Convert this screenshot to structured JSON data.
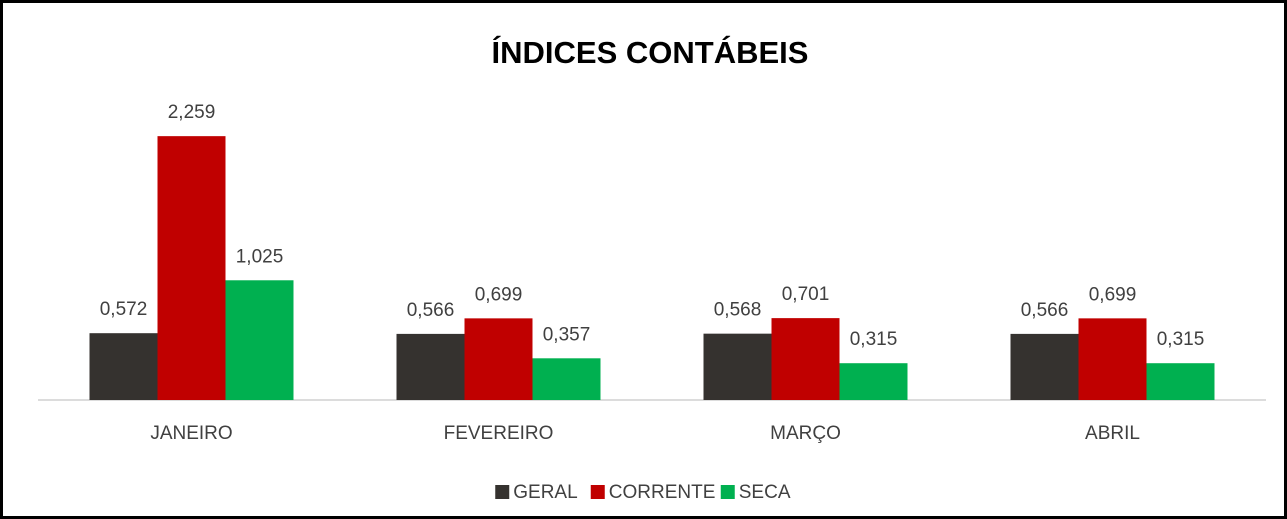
{
  "chart_data": {
    "type": "bar",
    "title": "ÍNDICES CONTÁBEIS",
    "categories": [
      "JANEIRO",
      "FEVEREIRO",
      "MARÇO",
      "ABRIL"
    ],
    "series": [
      {
        "name": "GERAL",
        "color": "#35322f",
        "values": [
          0.572,
          0.566,
          0.568,
          0.566
        ],
        "value_labels": [
          "0,572",
          "0,566",
          "0,568",
          "0,566"
        ]
      },
      {
        "name": "CORRENTE",
        "color": "#c00000",
        "values": [
          2.259,
          0.699,
          0.701,
          0.699
        ],
        "value_labels": [
          "2,259",
          "0,699",
          "0,701",
          "0,699"
        ]
      },
      {
        "name": "SECA",
        "color": "#00b050",
        "values": [
          1.025,
          0.357,
          0.315,
          0.315
        ],
        "value_labels": [
          "1,025",
          "0,357",
          "0,315",
          "0,315"
        ]
      }
    ],
    "ylim": [
      0,
      2.5
    ],
    "legend": "bottom"
  }
}
